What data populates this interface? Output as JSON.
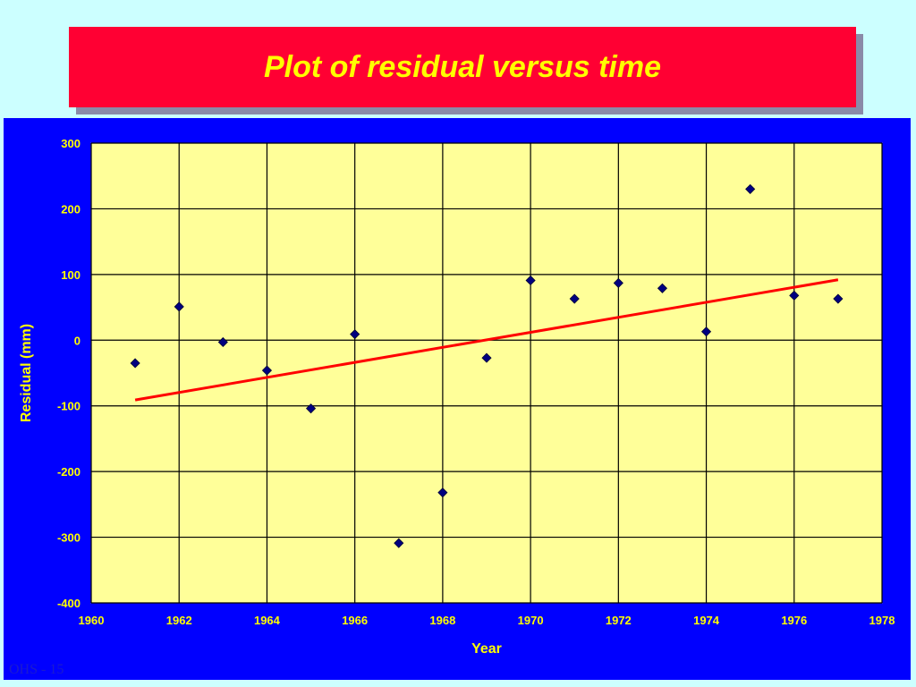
{
  "slide": {
    "title": "Plot of residual versus time",
    "footer": "OHS - 15"
  },
  "colors": {
    "background": "#ccffff",
    "title_fill": "#ff0033",
    "title_text": "#ffff00",
    "chart_panel": "#0000ff",
    "plot_area": "#ffff99",
    "axis_text": "#ffff00",
    "marker": "#000080",
    "trend_line": "#ff0000"
  },
  "chart_data": {
    "type": "scatter",
    "title": "",
    "xlabel": "Year",
    "ylabel": "Residual (mm)",
    "xlim": [
      1960,
      1978
    ],
    "ylim": [
      -400,
      300
    ],
    "x_ticks": [
      "1960",
      "1962",
      "1964",
      "1966",
      "1968",
      "1970",
      "1972",
      "1974",
      "1976",
      "1978"
    ],
    "y_ticks": [
      "300",
      "200",
      "100",
      "0",
      "-100",
      "-200",
      "-300",
      "-400"
    ],
    "grid": true,
    "legend": "none",
    "series": [
      {
        "marker": "diamond",
        "points": [
          {
            "x": 1961,
            "y": -35
          },
          {
            "x": 1962,
            "y": 51
          },
          {
            "x": 1963,
            "y": -3
          },
          {
            "x": 1964,
            "y": -46
          },
          {
            "x": 1965,
            "y": -104
          },
          {
            "x": 1966,
            "y": 9
          },
          {
            "x": 1967,
            "y": -309
          },
          {
            "x": 1968,
            "y": -232
          },
          {
            "x": 1969,
            "y": -27
          },
          {
            "x": 1970,
            "y": 91
          },
          {
            "x": 1971,
            "y": 63
          },
          {
            "x": 1972,
            "y": 87
          },
          {
            "x": 1973,
            "y": 79
          },
          {
            "x": 1974,
            "y": 13
          },
          {
            "x": 1975,
            "y": 230
          },
          {
            "x": 1976,
            "y": 68
          },
          {
            "x": 1977,
            "y": 63
          }
        ]
      }
    ],
    "trendline": {
      "type": "linear",
      "from": {
        "x": 1961,
        "y": -91
      },
      "to": {
        "x": 1977,
        "y": 92
      }
    }
  }
}
